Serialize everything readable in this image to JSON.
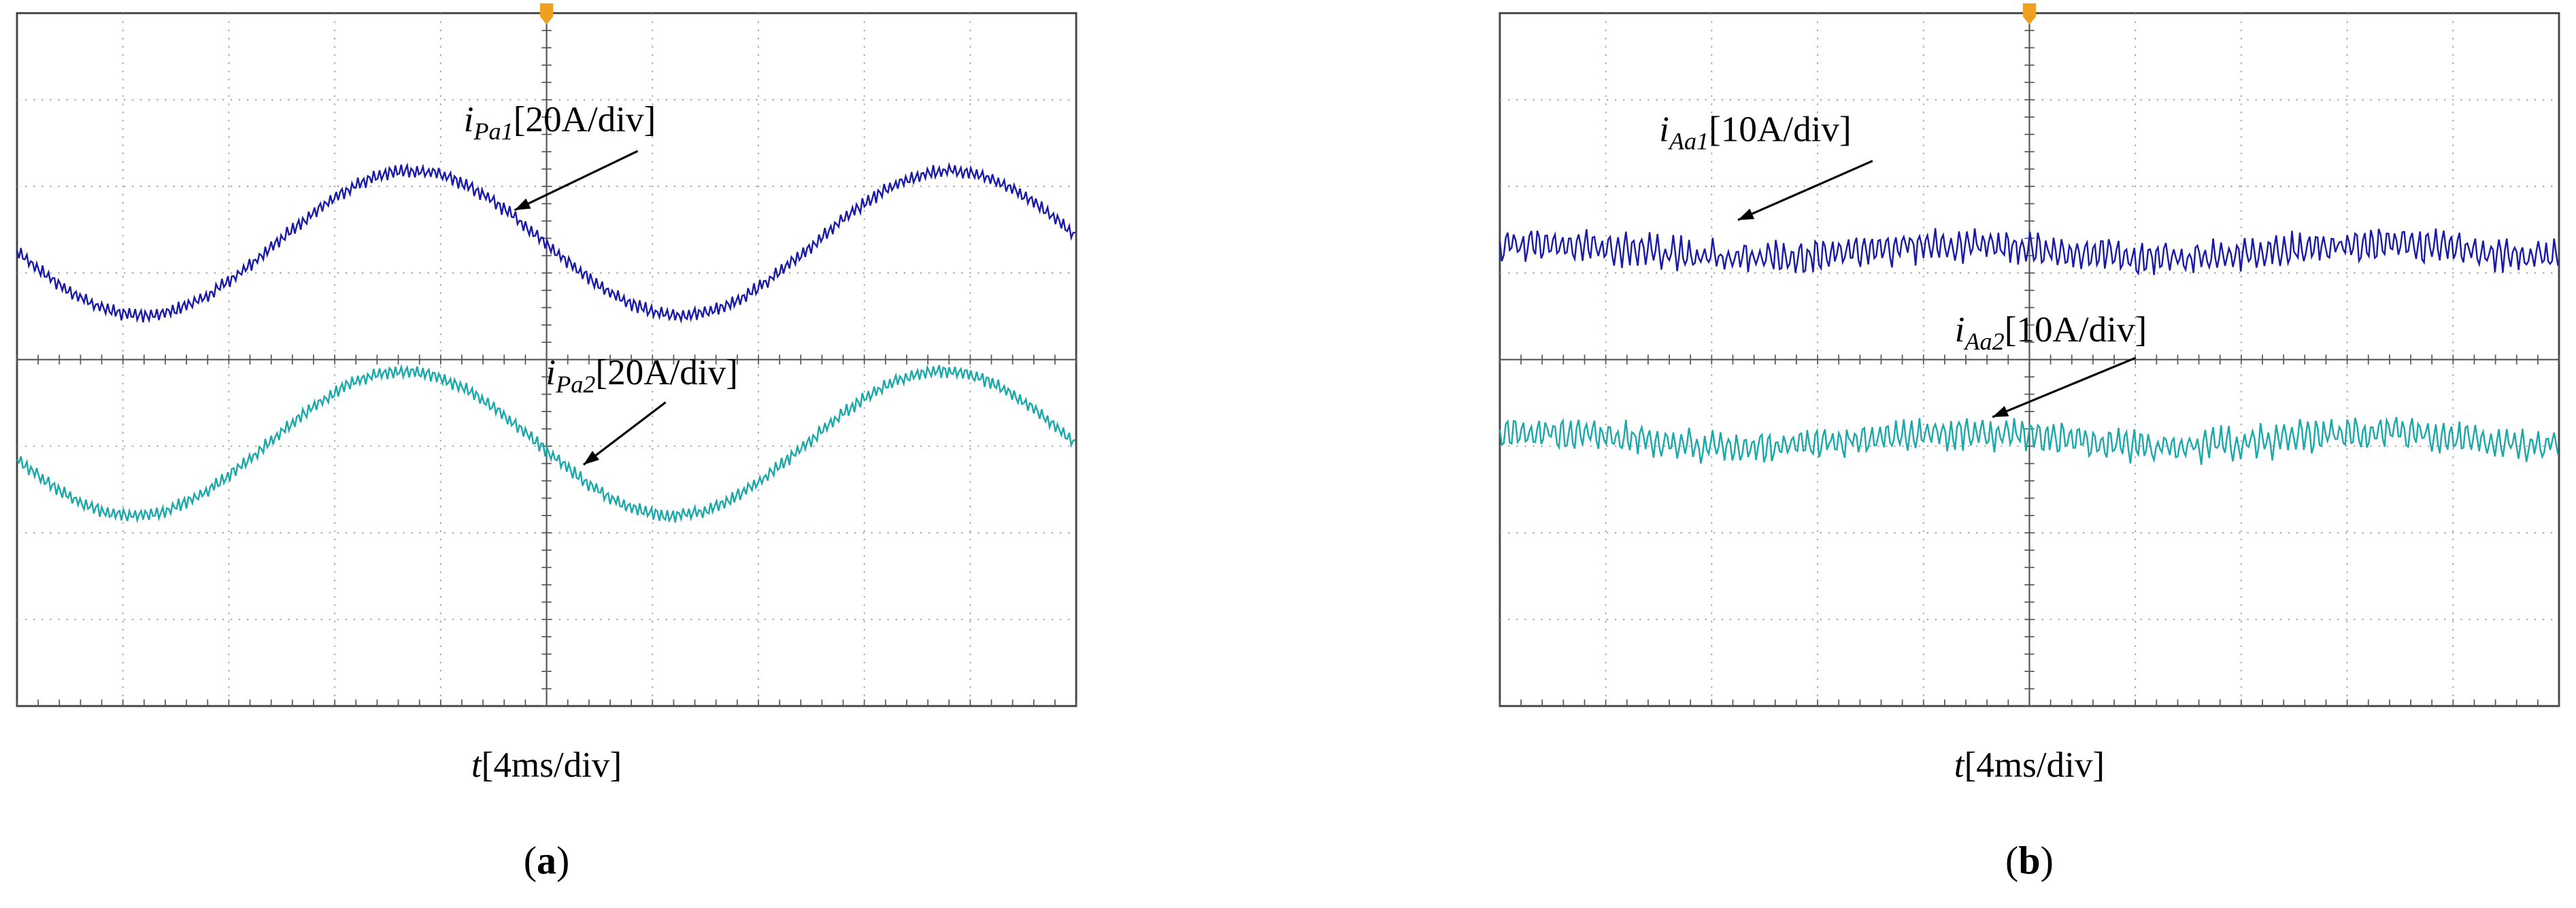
{
  "panels": [
    {
      "caption": [
        "(",
        "a",
        ")"
      ],
      "time_axis": {
        "symbol": "t",
        "scale": "[4ms/div]"
      },
      "traces": [
        {
          "symbol": "i",
          "subscript": "Pa1",
          "scale": "[20A/div]"
        },
        {
          "symbol": "i",
          "subscript": "Pa2",
          "scale": "[20A/div]"
        }
      ]
    },
    {
      "caption": [
        "(",
        "b",
        ")"
      ],
      "time_axis": {
        "symbol": "t",
        "scale": "[4ms/div]"
      },
      "traces": [
        {
          "symbol": "i",
          "subscript": "Aa1",
          "scale": "[10A/div]"
        },
        {
          "symbol": "i",
          "subscript": "Aa2",
          "scale": "[10A/div]"
        }
      ]
    }
  ]
}
